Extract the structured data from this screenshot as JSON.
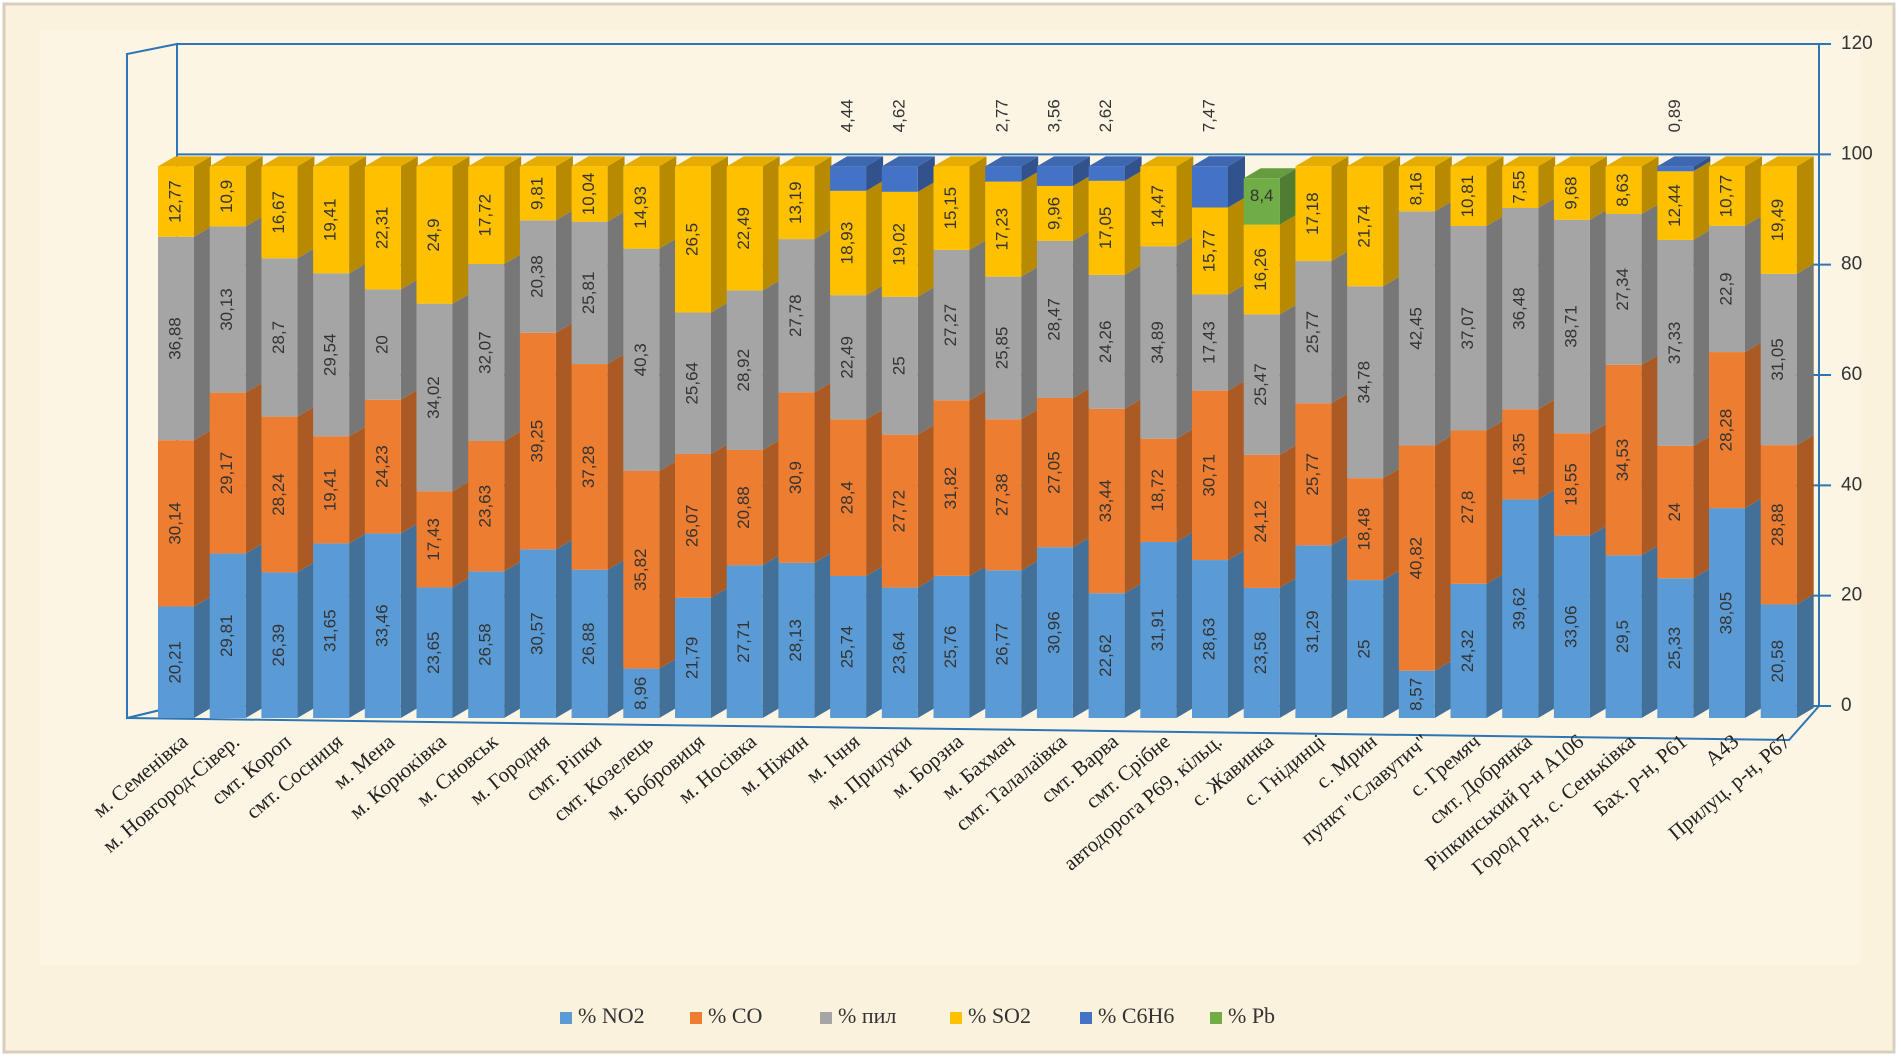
{
  "chart_data": {
    "type": "bar3d_stacked",
    "categories": [
      "м. Семенівка",
      "м. Новгород-Сівер.",
      "смт. Короп",
      "смт. Сосниця",
      "м. Мена",
      "м. Корюківка",
      "м. Сновськ",
      "м. Городня",
      "смт. Ріпки",
      "смт. Козелець",
      "м. Бобровиця",
      "м. Носівка",
      "м. Ніжин",
      "м. Ічня",
      "м. Прилуки",
      "м. Борзна",
      "м. Бахмач",
      "смт. Талалаївка",
      "смт. Варва",
      "смт. Срібне",
      "автодорога Р69, кільц.",
      "с. Жавинка",
      "с. Гнідинці",
      "с. Мрин",
      "пункт \"Славутич\"",
      "с. Гремяч",
      "смт. Добрянка",
      "Ріпкинський р-н А106",
      "Город р-н, с. Сеньківка",
      "Бах. р-н, Р61",
      "А43",
      "Прилуц. р-н, Р67"
    ],
    "series": [
      {
        "name": "% NO2",
        "color": "#5b9bd5",
        "values": [
          20.21,
          29.81,
          26.39,
          31.65,
          33.46,
          23.65,
          26.58,
          30.57,
          26.88,
          8.96,
          21.79,
          27.71,
          28.13,
          25.74,
          23.64,
          25.76,
          26.77,
          30.96,
          22.62,
          31.91,
          28.63,
          23.58,
          31.29,
          25,
          8.57,
          24.32,
          39.62,
          33.06,
          29.5,
          25.33,
          38.05,
          20.58
        ],
        "value_labels": [
          "20,21",
          "29,81",
          "26,39",
          "31,65",
          "33,46",
          "23,65",
          "26,58",
          "30,57",
          "26,88",
          "8,96",
          "21,79",
          "27,71",
          "28,13",
          "25,74",
          "23,64",
          "25,76",
          "26,77",
          "30,96",
          "22,62",
          "31,91",
          "28,63",
          "23,58",
          "31,29",
          "25",
          "8,57",
          "24,32",
          "39,62",
          "33,06",
          "29,5",
          "25,33",
          "38,05",
          "20,58"
        ]
      },
      {
        "name": "% CO",
        "color": "#ed7d31",
        "values": [
          30.14,
          29.17,
          28.24,
          19.41,
          24.23,
          17.43,
          23.63,
          39.25,
          37.28,
          35.82,
          26.07,
          20.88,
          30.9,
          28.4,
          27.72,
          31.82,
          27.38,
          27.05,
          33.44,
          18.72,
          30.71,
          24.12,
          25.77,
          18.48,
          40.82,
          27.8,
          16.35,
          18.55,
          34.53,
          24,
          28.28,
          28.88
        ],
        "value_labels": [
          "30,14",
          "29,17",
          "28,24",
          "19,41",
          "24,23",
          "17,43",
          "23,63",
          "39,25",
          "37,28",
          "35,82",
          "26,07",
          "20,88",
          "30,9",
          "28,4",
          "27,72",
          "31,82",
          "27,38",
          "27,05",
          "33,44",
          "18,72",
          "30,71",
          "24,12",
          "25,77",
          "18,48",
          "40,82",
          "27,8",
          "16,35",
          "18,55",
          "34,53",
          "24",
          "28,28",
          "28,88"
        ]
      },
      {
        "name": "% пил",
        "color": "#a5a5a5",
        "values": [
          36.88,
          30.13,
          28.7,
          29.54,
          20,
          34.02,
          32.07,
          20.38,
          25.81,
          40.3,
          25.64,
          28.92,
          27.78,
          22.49,
          25,
          27.27,
          25.85,
          28.47,
          24.26,
          34.89,
          17.43,
          25.47,
          25.77,
          34.78,
          42.45,
          37.07,
          36.48,
          38.71,
          27.34,
          37.33,
          22.9,
          31.05
        ],
        "value_labels": [
          "36,88",
          "30,13",
          "28,7",
          "29,54",
          "20",
          "34,02",
          "32,07",
          "20,38",
          "25,81",
          "40,3",
          "25,64",
          "28,92",
          "27,78",
          "22,49",
          "25",
          "27,27",
          "25,85",
          "28,47",
          "24,26",
          "34,89",
          "17,43",
          "25,47",
          "25,77",
          "34,78",
          "42,45",
          "37,07",
          "36,48",
          "38,71",
          "27,34",
          "37,33",
          "22,9",
          "31,05"
        ]
      },
      {
        "name": "% SO2",
        "color": "#ffc000",
        "values": [
          12.77,
          10.9,
          16.67,
          19.41,
          22.31,
          24.9,
          17.72,
          9.81,
          10.04,
          14.93,
          26.5,
          22.49,
          13.19,
          18.93,
          19.02,
          15.15,
          17.23,
          9.96,
          17.05,
          14.47,
          15.77,
          16.26,
          17.18,
          21.74,
          8.16,
          10.81,
          7.55,
          9.68,
          8.63,
          12.44,
          10.77,
          19.49
        ],
        "value_labels": [
          "12,77",
          "10,9",
          "16,67",
          "19,41",
          "22,31",
          "24,9",
          "17,72",
          "9,81",
          "10,04",
          "14,93",
          "26,5",
          "22,49",
          "13,19",
          "18,93",
          "19,02",
          "15,15",
          "17,23",
          "9,96",
          "17,05",
          "14,47",
          "15,77",
          "16,26",
          "17,18",
          "21,74",
          "8,16",
          "10,81",
          "7,55",
          "9,68",
          "8,63",
          "12,44",
          "10,77",
          "19,49"
        ]
      },
      {
        "name": "% C6H6",
        "color": "#4472c4",
        "values": [
          null,
          null,
          null,
          null,
          null,
          null,
          null,
          null,
          null,
          null,
          null,
          null,
          null,
          4.44,
          4.62,
          null,
          2.77,
          3.56,
          2.62,
          null,
          7.47,
          null,
          null,
          null,
          null,
          null,
          null,
          null,
          null,
          0.89,
          null,
          null
        ],
        "value_labels": [
          null,
          null,
          null,
          null,
          null,
          null,
          null,
          null,
          null,
          null,
          null,
          null,
          null,
          "4,44",
          "4,62",
          null,
          "2,77",
          "3,56",
          "2,62",
          null,
          "7,47",
          null,
          null,
          null,
          null,
          null,
          null,
          null,
          null,
          "0,89",
          null,
          null
        ]
      },
      {
        "name": "% Pb",
        "color": "#70ad47",
        "values": [
          null,
          null,
          null,
          null,
          null,
          null,
          null,
          null,
          null,
          null,
          null,
          null,
          null,
          null,
          null,
          null,
          null,
          null,
          null,
          null,
          null,
          8.4,
          null,
          null,
          null,
          null,
          null,
          null,
          null,
          null,
          null,
          null
        ],
        "value_labels": [
          null,
          null,
          null,
          null,
          null,
          null,
          null,
          null,
          null,
          null,
          null,
          null,
          null,
          null,
          null,
          null,
          null,
          null,
          null,
          null,
          null,
          "8,4",
          null,
          null,
          null,
          null,
          null,
          null,
          null,
          null,
          null,
          null
        ]
      }
    ],
    "ylim": [
      0,
      120
    ],
    "yticks": [
      0,
      20,
      40,
      60,
      80,
      100,
      120
    ],
    "grid": true,
    "legend": "bottom"
  }
}
